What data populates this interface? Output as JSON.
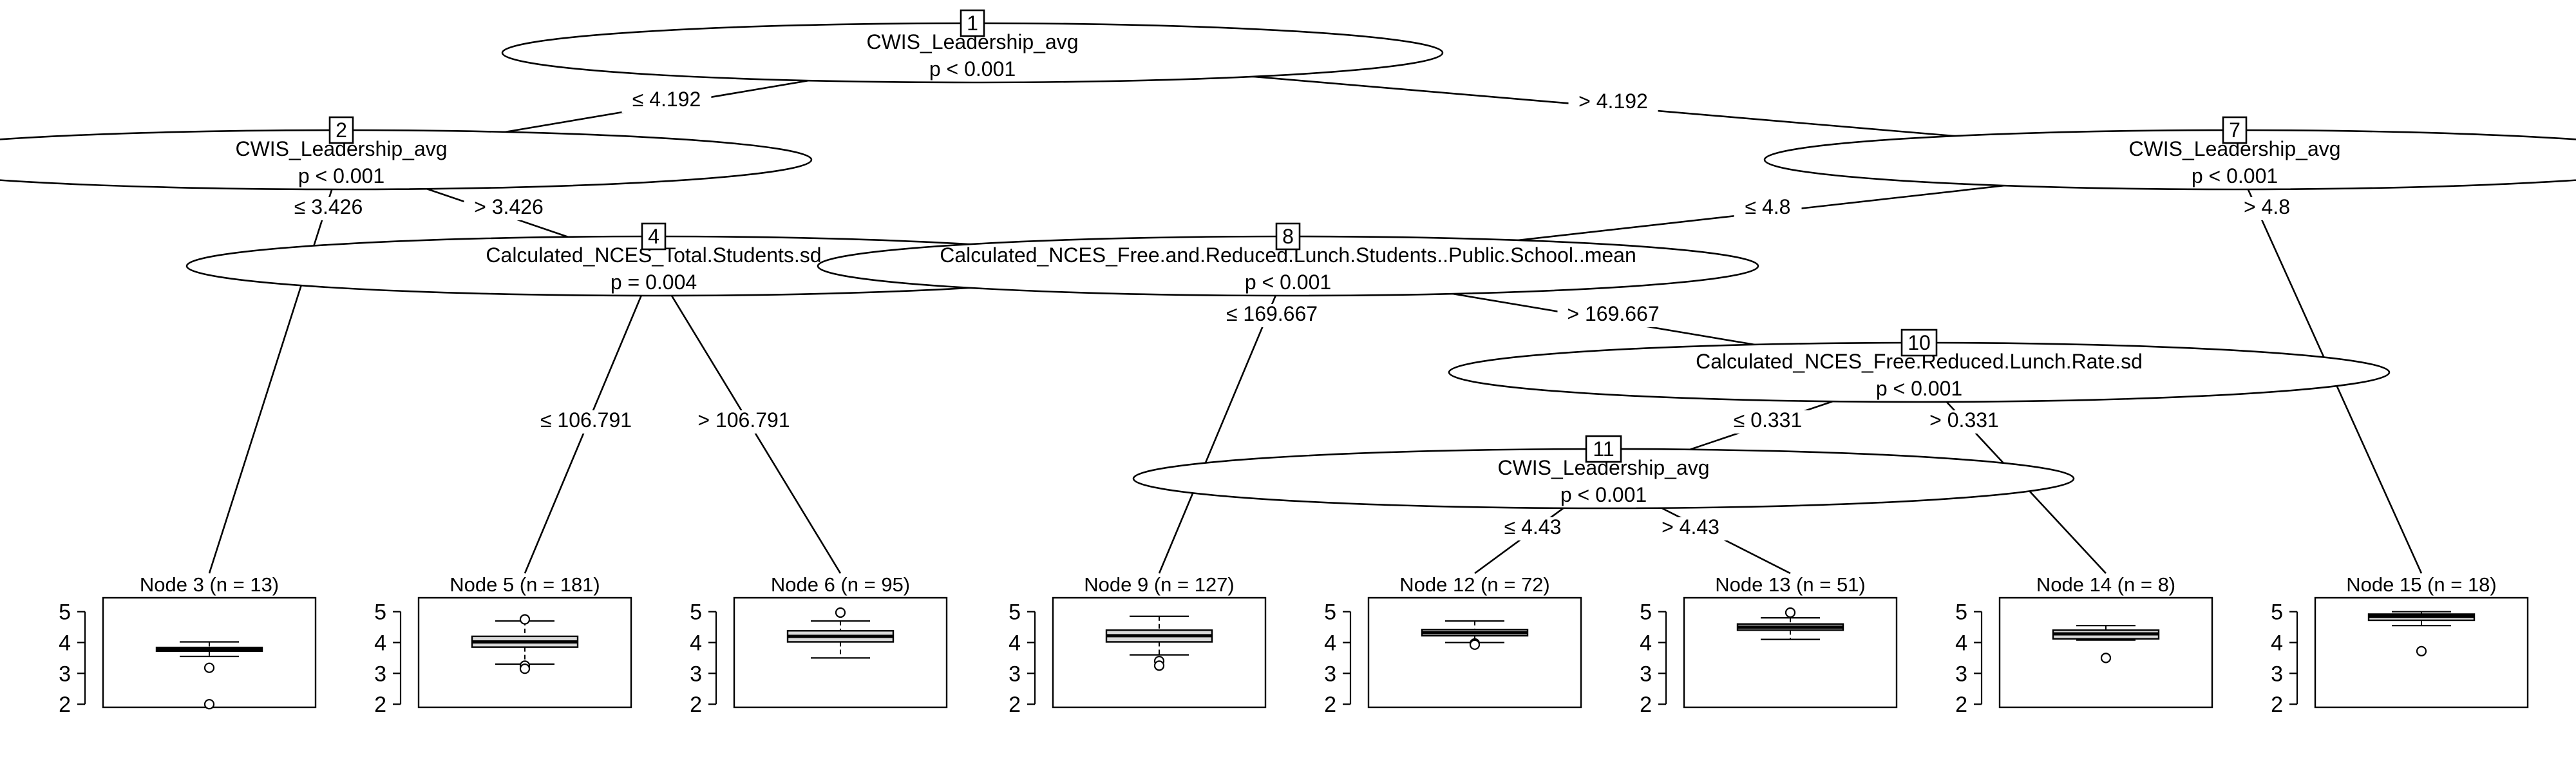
{
  "diagram": {
    "inner_nodes": [
      {
        "id": "1",
        "variable": "CWIS_Leadership_avg",
        "p": "p < 0.001"
      },
      {
        "id": "2",
        "variable": "CWIS_Leadership_avg",
        "p": "p < 0.001"
      },
      {
        "id": "4",
        "variable": "Calculated_NCES_Total.Students.sd",
        "p": "p = 0.004"
      },
      {
        "id": "7",
        "variable": "CWIS_Leadership_avg",
        "p": "p < 0.001"
      },
      {
        "id": "8",
        "variable": "Calculated_NCES_Free.and.Reduced.Lunch.Students..Public.School..mean",
        "p": "p < 0.001"
      },
      {
        "id": "10",
        "variable": "Calculated_NCES_Free.Reduced.Lunch.Rate.sd",
        "p": "p < 0.001"
      },
      {
        "id": "11",
        "variable": "CWIS_Leadership_avg",
        "p": "p < 0.001"
      }
    ],
    "edges": [
      {
        "from": "1",
        "to": "2",
        "label": "≤ 4.192"
      },
      {
        "from": "1",
        "to": "7",
        "label": "> 4.192"
      },
      {
        "from": "2",
        "to": "3",
        "label": "≤ 3.426"
      },
      {
        "from": "2",
        "to": "4",
        "label": "> 3.426"
      },
      {
        "from": "4",
        "to": "5",
        "label": "≤ 106.791"
      },
      {
        "from": "4",
        "to": "6",
        "label": "> 106.791"
      },
      {
        "from": "7",
        "to": "8",
        "label": "≤ 4.8"
      },
      {
        "from": "7",
        "to": "15",
        "label": "> 4.8"
      },
      {
        "from": "8",
        "to": "9",
        "label": "≤ 169.667"
      },
      {
        "from": "8",
        "to": "10",
        "label": "> 169.667"
      },
      {
        "from": "10",
        "to": "11",
        "label": "≤ 0.331"
      },
      {
        "from": "10",
        "to": "14",
        "label": "> 0.331"
      },
      {
        "from": "11",
        "to": "12",
        "label": "≤ 4.43"
      },
      {
        "from": "11",
        "to": "13",
        "label": "> 4.43"
      }
    ],
    "terminal_nodes": [
      {
        "id": "3",
        "title": "Node 3 (n = 13)",
        "stats": {
          "min": 3.55,
          "q1": 3.72,
          "median": 3.78,
          "q3": 3.84,
          "max": 4.02
        },
        "outliers": [
          3.18,
          2.0
        ]
      },
      {
        "id": "5",
        "title": "Node 5 (n = 181)",
        "stats": {
          "min": 3.3,
          "q1": 3.85,
          "median": 4.02,
          "q3": 4.2,
          "max": 4.7
        },
        "outliers": [
          4.75,
          3.25,
          3.15
        ]
      },
      {
        "id": "6",
        "title": "Node 6 (n = 95)",
        "stats": {
          "min": 3.5,
          "q1": 4.02,
          "median": 4.2,
          "q3": 4.38,
          "max": 4.7
        },
        "outliers": [
          4.97
        ]
      },
      {
        "id": "9",
        "title": "Node 9 (n = 127)",
        "stats": {
          "min": 3.6,
          "q1": 4.02,
          "median": 4.22,
          "q3": 4.4,
          "max": 4.85
        },
        "outliers": [
          3.4,
          3.25
        ]
      },
      {
        "id": "12",
        "title": "Node 12 (n = 72)",
        "stats": {
          "min": 4.0,
          "q1": 4.22,
          "median": 4.32,
          "q3": 4.42,
          "max": 4.7
        },
        "outliers": [
          3.97,
          3.93
        ]
      },
      {
        "id": "13",
        "title": "Node 13 (n = 51)",
        "stats": {
          "min": 4.1,
          "q1": 4.4,
          "median": 4.5,
          "q3": 4.6,
          "max": 4.8
        },
        "outliers": [
          4.97
        ]
      },
      {
        "id": "14",
        "title": "Node 14 (n = 8)",
        "stats": {
          "min": 4.08,
          "q1": 4.12,
          "median": 4.28,
          "q3": 4.4,
          "max": 4.55
        },
        "outliers": [
          3.5
        ]
      },
      {
        "id": "15",
        "title": "Node 15 (n = 18)",
        "stats": {
          "min": 4.55,
          "q1": 4.72,
          "median": 4.85,
          "q3": 4.92,
          "max": 5.0
        },
        "outliers": [
          3.72
        ]
      }
    ],
    "y_axis": {
      "ticks": [
        "2",
        "3",
        "4",
        "5"
      ],
      "range": [
        1.9,
        5.45
      ]
    }
  }
}
